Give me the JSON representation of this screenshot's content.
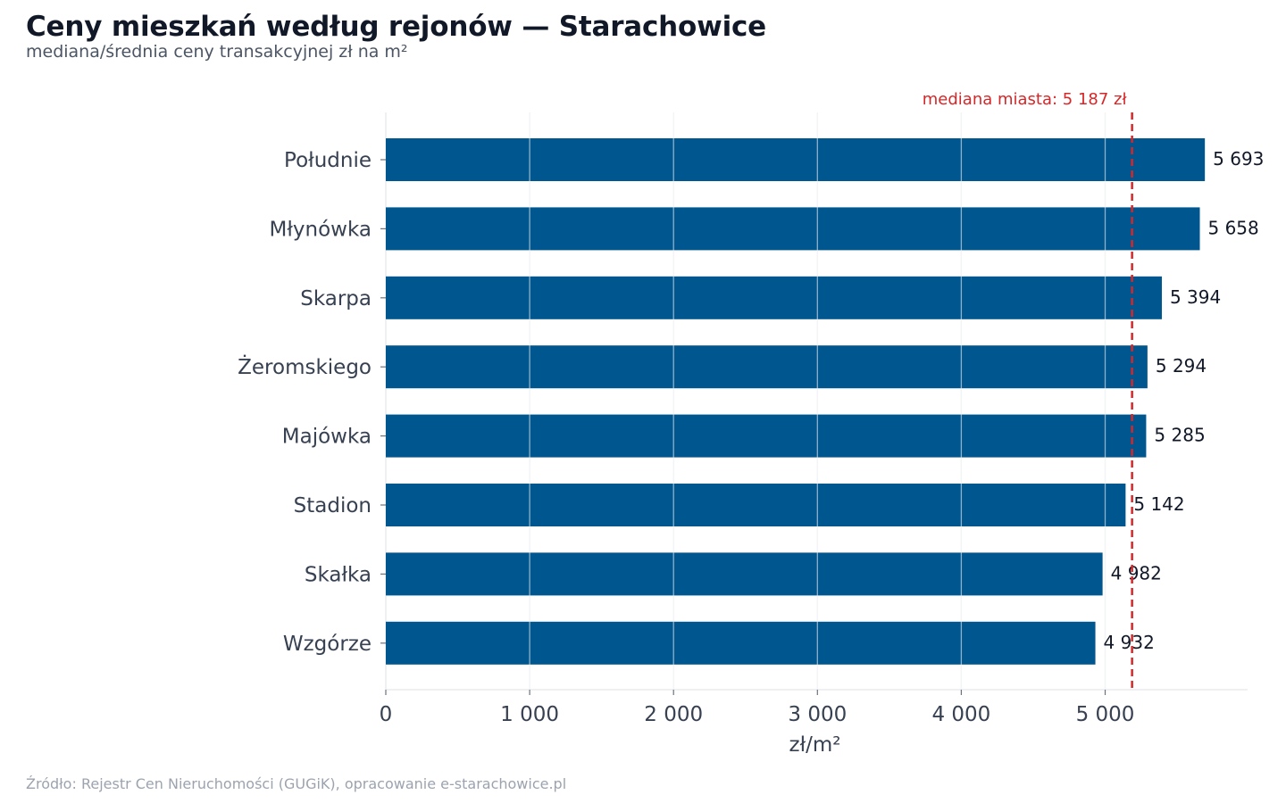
{
  "chart_data": {
    "type": "bar",
    "orientation": "horizontal",
    "title": "Ceny mieszkań według rejonów — Starachowice",
    "subtitle": "mediana/średnia ceny transakcyjnej zł na m²",
    "xlabel": "zł/m²",
    "ylabel": "",
    "xlim": [
      0,
      5990
    ],
    "xticks": [
      0,
      1000,
      2000,
      3000,
      4000,
      5000
    ],
    "xtick_labels": [
      "0",
      "1 000",
      "2 000",
      "3 000",
      "4 000",
      "5 000"
    ],
    "categories": [
      "Południe",
      "Młynówka",
      "Skarpa",
      "Żeromskiego",
      "Majówka",
      "Stadion",
      "Skałka",
      "Wzgórze"
    ],
    "values": [
      5693,
      5658,
      5394,
      5294,
      5285,
      5142,
      4982,
      4932
    ],
    "value_labels": [
      "5 693",
      "5 658",
      "5 394",
      "5 294",
      "5 285",
      "5 142",
      "4 982",
      "4 932"
    ],
    "reference_line": {
      "value": 5187,
      "label": "mediana miasta: 5 187 zł",
      "color": "#d62728",
      "style": "dashed"
    },
    "bar_color": "#00568f",
    "grid": "vertical",
    "legend": "none"
  },
  "footer": {
    "source": "Źródło: Rejestr Cen Nieruchomości (GUGiK), opracowanie e-starachowice.pl"
  }
}
